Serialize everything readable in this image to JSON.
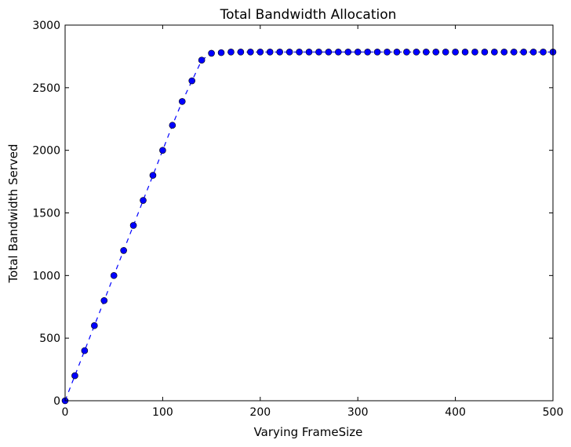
{
  "chart_data": {
    "type": "line",
    "title": "Total Bandwidth Allocation",
    "xlabel": "Varying FrameSize",
    "ylabel": "Total Bandwidth Served",
    "xlim": [
      0,
      500
    ],
    "ylim": [
      0,
      3000
    ],
    "x_ticks": [
      0,
      100,
      200,
      300,
      400,
      500
    ],
    "y_ticks": [
      0,
      500,
      1000,
      1500,
      2000,
      2500,
      3000
    ],
    "grid": false,
    "legend": "none",
    "line_style": "dashed",
    "marker": "circle",
    "color": "#0000ff",
    "series": [
      {
        "x": [
          0,
          10,
          20,
          30,
          40,
          50,
          60,
          70,
          80,
          90,
          100,
          110,
          120,
          130,
          140,
          150,
          160,
          170,
          180,
          190,
          200,
          210,
          220,
          230,
          240,
          250,
          260,
          270,
          280,
          290,
          300,
          310,
          320,
          330,
          340,
          350,
          360,
          370,
          380,
          390,
          400,
          410,
          420,
          430,
          440,
          450,
          460,
          470,
          480,
          490,
          500
        ],
        "y": [
          0,
          200,
          400,
          600,
          800,
          1000,
          1200,
          1400,
          1600,
          1800,
          2000,
          2200,
          2390,
          2555,
          2720,
          2775,
          2780,
          2785,
          2785,
          2785,
          2785,
          2785,
          2785,
          2785,
          2785,
          2785,
          2785,
          2785,
          2785,
          2785,
          2785,
          2785,
          2785,
          2785,
          2785,
          2785,
          2785,
          2785,
          2785,
          2785,
          2785,
          2785,
          2785,
          2785,
          2785,
          2785,
          2785,
          2785,
          2785,
          2785,
          2785
        ]
      }
    ]
  }
}
